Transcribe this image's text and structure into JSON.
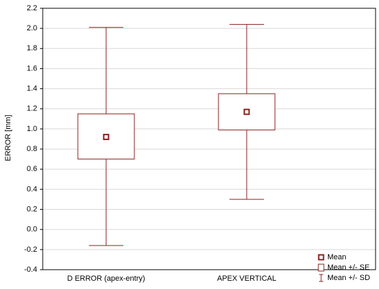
{
  "chart_data": {
    "type": "box",
    "y_label": "ERROR [mm]",
    "categories": [
      "D ERROR (apex-entry)",
      "APEX VERTICAL"
    ],
    "mean": [
      0.92,
      1.17
    ],
    "se_low": [
      0.7,
      0.99
    ],
    "se_high": [
      1.15,
      1.35
    ],
    "sd_low": [
      -0.16,
      0.3
    ],
    "sd_high": [
      2.01,
      2.04
    ],
    "color": "#8b1c1c",
    "legend": [
      "Mean",
      "Mean +/- SE",
      "Mean +/- SD"
    ],
    "ylim": [
      -0.4,
      2.2
    ],
    "yticks": [
      -0.4,
      -0.2,
      {
        "value": 0,
        "label": "0.0"
      },
      0.2,
      0.4,
      0.6,
      0.8,
      {
        "value": 1,
        "label": "1.0"
      },
      1.2,
      1.4,
      1.6,
      1.8,
      {
        "value": 2,
        "label": "2.0"
      },
      2.2
    ],
    "grid": true
  }
}
